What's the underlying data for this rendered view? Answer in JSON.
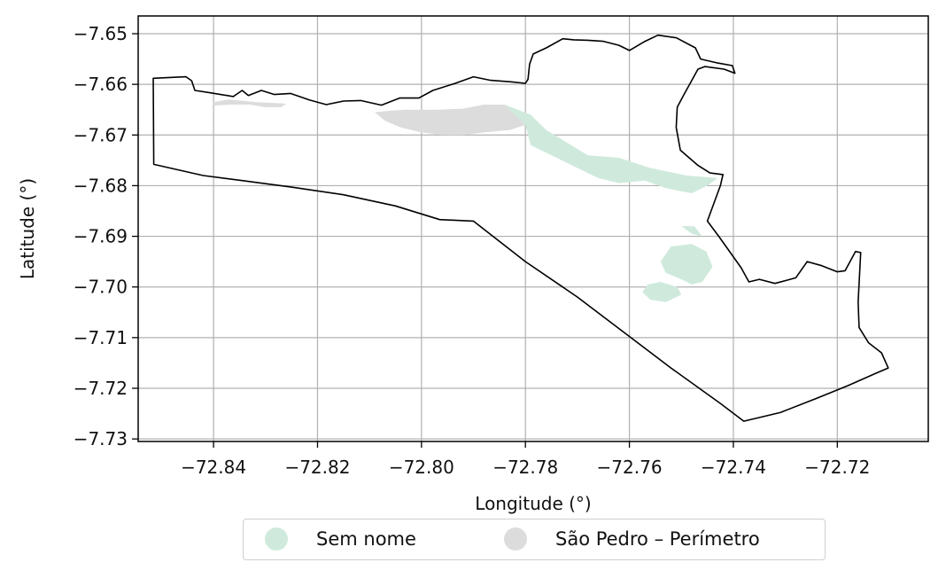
{
  "chart_data": {
    "type": "map",
    "xlabel": "Longitude (°)",
    "ylabel": "Latitude (°)",
    "xlim": [
      -72.8545,
      -72.7025
    ],
    "ylim": [
      -7.7305,
      -7.6465
    ],
    "xticks": [
      -72.84,
      -72.82,
      -72.8,
      -72.78,
      -72.76,
      -72.74,
      -72.72
    ],
    "xtick_labels": [
      "−72.84",
      "−72.82",
      "−72.80",
      "−72.78",
      "−72.76",
      "−72.74",
      "−72.72"
    ],
    "yticks": [
      -7.65,
      -7.66,
      -7.67,
      -7.68,
      -7.69,
      -7.7,
      -7.71,
      -7.72,
      -7.73
    ],
    "ytick_labels": [
      "−7.65",
      "−7.66",
      "−7.67",
      "−7.68",
      "−7.69",
      "−7.70",
      "−7.71",
      "−7.72",
      "−7.73"
    ],
    "grid": true,
    "legend_position": "below",
    "boundary": [
      [
        -72.8516,
        -7.6588
      ],
      [
        -72.8453,
        -7.6585
      ],
      [
        -72.8442,
        -7.6593
      ],
      [
        -72.8436,
        -7.6612
      ],
      [
        -72.841,
        -7.6616
      ],
      [
        -72.8362,
        -7.6624
      ],
      [
        -72.8345,
        -7.6612
      ],
      [
        -72.8333,
        -7.6622
      ],
      [
        -72.8308,
        -7.6612
      ],
      [
        -72.8283,
        -7.662
      ],
      [
        -72.8252,
        -7.6618
      ],
      [
        -72.8215,
        -7.6631
      ],
      [
        -72.8183,
        -7.664
      ],
      [
        -72.815,
        -7.6633
      ],
      [
        -72.8117,
        -7.6632
      ],
      [
        -72.8077,
        -7.6641
      ],
      [
        -72.8042,
        -7.6627
      ],
      [
        -72.8005,
        -7.6627
      ],
      [
        -72.7978,
        -7.6612
      ],
      [
        -72.7935,
        -7.6598
      ],
      [
        -72.79,
        -7.6585
      ],
      [
        -72.7867,
        -7.6592
      ],
      [
        -72.7828,
        -7.6595
      ],
      [
        -72.78,
        -7.6598
      ],
      [
        -72.7795,
        -7.659
      ],
      [
        -72.7792,
        -7.656
      ],
      [
        -72.7785,
        -7.654
      ],
      [
        -72.776,
        -7.6528
      ],
      [
        -72.7728,
        -7.651
      ],
      [
        -72.7707,
        -7.6512
      ],
      [
        -72.768,
        -7.6513
      ],
      [
        -72.765,
        -7.6515
      ],
      [
        -72.762,
        -7.6523
      ],
      [
        -72.76,
        -7.6533
      ],
      [
        -72.757,
        -7.6515
      ],
      [
        -72.7545,
        -7.6503
      ],
      [
        -72.751,
        -7.6508
      ],
      [
        -72.7473,
        -7.6528
      ],
      [
        -72.7463,
        -7.655
      ],
      [
        -72.743,
        -7.6558
      ],
      [
        -72.7402,
        -7.6563
      ],
      [
        -72.7397,
        -7.6578
      ],
      [
        -72.7418,
        -7.657
      ],
      [
        -72.7455,
        -7.6565
      ],
      [
        -72.7468,
        -7.657
      ],
      [
        -72.7495,
        -7.662
      ],
      [
        -72.7508,
        -7.6645
      ],
      [
        -72.751,
        -7.6685
      ],
      [
        -72.7502,
        -7.673
      ],
      [
        -72.7468,
        -7.676
      ],
      [
        -72.7445,
        -7.6775
      ],
      [
        -72.742,
        -7.6778
      ],
      [
        -72.7425,
        -7.68
      ],
      [
        -72.745,
        -7.687
      ],
      [
        -72.7428,
        -7.69
      ],
      [
        -72.7385,
        -7.6962
      ],
      [
        -72.737,
        -7.699
      ],
      [
        -72.735,
        -7.6985
      ],
      [
        -72.732,
        -7.6993
      ],
      [
        -72.728,
        -7.6982
      ],
      [
        -72.7258,
        -7.695
      ],
      [
        -72.723,
        -7.6958
      ],
      [
        -72.72,
        -7.697
      ],
      [
        -72.7185,
        -7.6968
      ],
      [
        -72.7165,
        -7.693
      ],
      [
        -72.7155,
        -7.6932
      ],
      [
        -72.716,
        -7.703
      ],
      [
        -72.7158,
        -7.708
      ],
      [
        -72.714,
        -7.711
      ],
      [
        -72.7115,
        -7.713
      ],
      [
        -72.7102,
        -7.716
      ],
      [
        -72.7125,
        -7.717
      ],
      [
        -72.718,
        -7.7195
      ],
      [
        -72.724,
        -7.722
      ],
      [
        -72.731,
        -7.7248
      ],
      [
        -72.738,
        -7.7265
      ],
      [
        -72.7425,
        -7.723
      ],
      [
        -72.752,
        -7.716
      ],
      [
        -72.761,
        -7.709
      ],
      [
        -72.77,
        -7.702
      ],
      [
        -72.78,
        -7.695
      ],
      [
        -72.79,
        -7.687
      ],
      [
        -72.7965,
        -7.6867
      ],
      [
        -72.805,
        -7.684
      ],
      [
        -72.815,
        -7.6818
      ],
      [
        -72.825,
        -7.6803
      ],
      [
        -72.8345,
        -7.679
      ],
      [
        -72.842,
        -7.678
      ],
      [
        -72.8515,
        -7.6758
      ],
      [
        -72.8516,
        -7.6588
      ]
    ],
    "series": [
      {
        "name": "Sem nome",
        "color": "#cfeadc",
        "polygons": [
          [
            [
              -72.784,
              -7.664
            ],
            [
              -72.779,
              -7.666
            ],
            [
              -72.776,
              -7.669
            ],
            [
              -72.772,
              -7.6715
            ],
            [
              -72.768,
              -7.674
            ],
            [
              -72.762,
              -7.6745
            ],
            [
              -72.756,
              -7.6765
            ],
            [
              -72.749,
              -7.678
            ],
            [
              -72.743,
              -7.6785
            ],
            [
              -72.745,
              -7.68
            ],
            [
              -72.748,
              -7.6815
            ],
            [
              -72.753,
              -7.6805
            ],
            [
              -72.757,
              -7.679
            ],
            [
              -72.762,
              -7.6795
            ],
            [
              -72.766,
              -7.6785
            ],
            [
              -72.771,
              -7.676
            ],
            [
              -72.774,
              -7.6745
            ],
            [
              -72.779,
              -7.672
            ],
            [
              -72.78,
              -7.668
            ]
          ],
          [
            [
              -72.75,
              -7.688
            ],
            [
              -72.748,
              -7.6895
            ],
            [
              -72.746,
              -7.69
            ],
            [
              -72.7475,
              -7.688
            ]
          ],
          [
            [
              -72.752,
              -7.692
            ],
            [
              -72.748,
              -7.6915
            ],
            [
              -72.7452,
              -7.693
            ],
            [
              -72.744,
              -7.696
            ],
            [
              -72.746,
              -7.699
            ],
            [
              -72.748,
              -7.6995
            ],
            [
              -72.75,
              -7.6985
            ],
            [
              -72.753,
              -7.6972
            ],
            [
              -72.754,
              -7.695
            ]
          ],
          [
            [
              -72.7565,
              -7.6995
            ],
            [
              -72.754,
              -7.699
            ],
            [
              -72.7508,
              -7.7
            ],
            [
              -72.75,
              -7.7015
            ],
            [
              -72.753,
              -7.703
            ],
            [
              -72.756,
              -7.7025
            ],
            [
              -72.7575,
              -7.701
            ]
          ]
        ]
      },
      {
        "name": "São Pedro – Perímetro",
        "color": "#dcdcdc",
        "polygons": [
          [
            [
              -72.84,
              -7.6635
            ],
            [
              -72.837,
              -7.663
            ],
            [
              -72.832,
              -7.6635
            ],
            [
              -72.826,
              -7.6638
            ],
            [
              -72.827,
              -7.6645
            ],
            [
              -72.83,
              -7.6645
            ],
            [
              -72.833,
              -7.664
            ],
            [
              -72.837,
              -7.664
            ],
            [
              -72.84,
              -7.6642
            ]
          ],
          [
            [
              -72.809,
              -7.6655
            ],
            [
              -72.806,
              -7.6652
            ],
            [
              -72.803,
              -7.665
            ],
            [
              -72.797,
              -7.665
            ],
            [
              -72.792,
              -7.6648
            ],
            [
              -72.788,
              -7.664
            ],
            [
              -72.784,
              -7.664
            ],
            [
              -72.78,
              -7.668
            ],
            [
              -72.783,
              -7.669
            ],
            [
              -72.788,
              -7.6695
            ],
            [
              -72.792,
              -7.67
            ],
            [
              -72.796,
              -7.67
            ],
            [
              -72.8,
              -7.6695
            ],
            [
              -72.804,
              -7.6685
            ],
            [
              -72.807,
              -7.6672
            ]
          ]
        ]
      }
    ]
  },
  "legend": {
    "items": [
      {
        "label": "Sem nome",
        "color": "#cfeadc"
      },
      {
        "label": "São Pedro – Perímetro",
        "color": "#dcdcdc"
      }
    ]
  }
}
